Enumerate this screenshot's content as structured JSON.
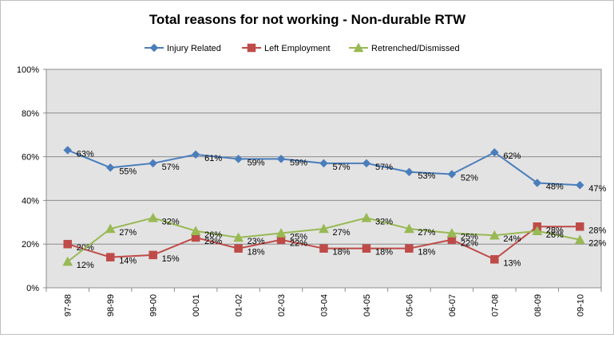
{
  "chart_data": {
    "type": "line",
    "title": "Total reasons for not working - Non-durable RTW",
    "categories": [
      "97-98",
      "98-99",
      "99-00",
      "00-01",
      "01-02",
      "02-03",
      "03-04",
      "04-05",
      "05-06",
      "06-07",
      "07-08",
      "08-09",
      "09-10"
    ],
    "ylim": [
      0,
      100
    ],
    "yticks": [
      0,
      20,
      40,
      60,
      80,
      100
    ],
    "ytick_labels": [
      "0%",
      "20%",
      "40%",
      "60%",
      "80%",
      "100%"
    ],
    "grid": true,
    "legend_position": "top",
    "plot_background": "#e3e3e3",
    "series": [
      {
        "name": "Injury Related",
        "color": "#4a7ebb",
        "marker": "diamond",
        "values": [
          63,
          55,
          57,
          61,
          59,
          59,
          57,
          57,
          53,
          52,
          62,
          48,
          47
        ],
        "labels": [
          "63%",
          "55%",
          "57%",
          "61%",
          "59%",
          "59%",
          "57%",
          "57%",
          "53%",
          "52%",
          "62%",
          "48%",
          "47%"
        ]
      },
      {
        "name": "Left Employment",
        "color": "#be4b48",
        "marker": "square",
        "values": [
          20,
          14,
          15,
          23,
          18,
          22,
          18,
          18,
          18,
          22,
          13,
          28,
          28
        ],
        "labels": [
          "20%",
          "14%",
          "15%",
          "23%",
          "18%",
          "22%",
          "18%",
          "18%",
          "18%",
          "22%",
          "13%",
          "28%",
          "28%"
        ]
      },
      {
        "name": "Retrenched/Dismissed",
        "color": "#98b954",
        "marker": "triangle",
        "values": [
          12,
          27,
          32,
          26,
          23,
          25,
          27,
          32,
          27,
          25,
          24,
          26,
          22
        ],
        "labels": [
          "12%",
          "27%",
          "32%",
          "26%",
          "23%",
          "25%",
          "27%",
          "32%",
          "27%",
          "25%",
          "24%",
          "26%",
          "22%"
        ]
      }
    ]
  }
}
